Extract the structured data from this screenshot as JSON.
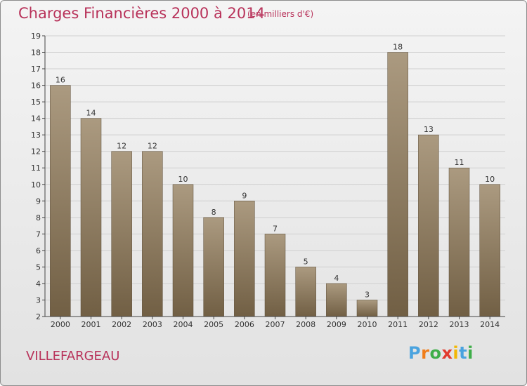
{
  "title": "Charges Financières 2000 à 2014",
  "subtitle": "(en milliers d'€)",
  "place": "VILLEFARGEAU",
  "logo": {
    "text": "Proxiti",
    "letters": [
      {
        "ch": "P",
        "color": "#4aa3df"
      },
      {
        "ch": "r",
        "color": "#f07d1a"
      },
      {
        "ch": "o",
        "color": "#3fae49"
      },
      {
        "ch": "x",
        "color": "#e23b2e"
      },
      {
        "ch": "i",
        "color": "#f2b705"
      },
      {
        "ch": "t",
        "color": "#4aa3df"
      },
      {
        "ch": "i",
        "color": "#3fae49"
      }
    ]
  },
  "colors": {
    "title": "#b8325a",
    "bar_top": "#ab9a80",
    "bar_bottom": "#715f44",
    "axis": "#444444",
    "grid": "#cfcfcf"
  },
  "chart_data": {
    "type": "bar",
    "title": "Charges Financières 2000 à 2014",
    "subtitle": "(en milliers d'€)",
    "categories": [
      "2000",
      "2001",
      "2002",
      "2003",
      "2004",
      "2005",
      "2006",
      "2007",
      "2008",
      "2009",
      "2010",
      "2011",
      "2012",
      "2013",
      "2014"
    ],
    "values": [
      16,
      14,
      12,
      12,
      10,
      8,
      9,
      7,
      5,
      4,
      3,
      18,
      13,
      11,
      10
    ],
    "ylim": [
      2,
      19
    ],
    "yticks": [
      2,
      3,
      4,
      5,
      6,
      7,
      8,
      9,
      10,
      11,
      12,
      13,
      14,
      15,
      16,
      17,
      18,
      19
    ],
    "grid": true,
    "data_labels": true,
    "xlabel": "",
    "ylabel": ""
  }
}
